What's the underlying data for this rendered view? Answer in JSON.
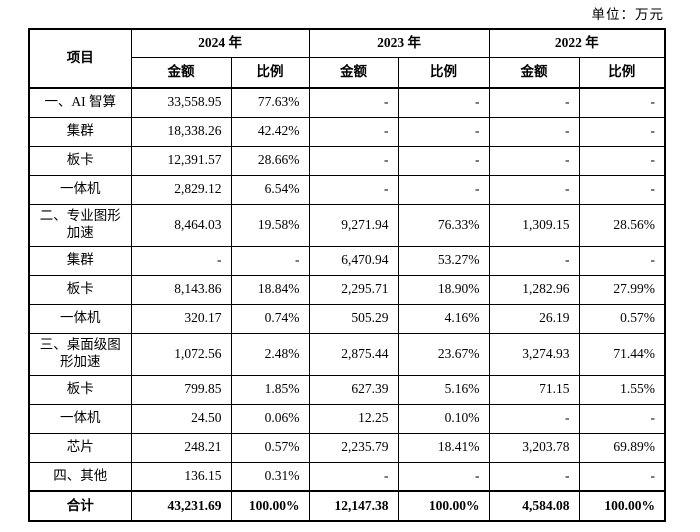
{
  "unit_label": "单位：万元",
  "table": {
    "header": {
      "item": "项目",
      "years": [
        "2024 年",
        "2023 年",
        "2022 年"
      ],
      "amount": "金额",
      "ratio": "比例"
    },
    "rows": [
      {
        "label": "一、AI 智算",
        "cells": [
          "33,558.95",
          "77.63%",
          "-",
          "-",
          "-",
          "-"
        ]
      },
      {
        "label": "集群",
        "cells": [
          "18,338.26",
          "42.42%",
          "-",
          "-",
          "-",
          "-"
        ]
      },
      {
        "label": "板卡",
        "cells": [
          "12,391.57",
          "28.66%",
          "-",
          "-",
          "-",
          "-"
        ]
      },
      {
        "label": "一体机",
        "cells": [
          "2,829.12",
          "6.54%",
          "-",
          "-",
          "-",
          "-"
        ]
      },
      {
        "label": "二、专业图形\n加速",
        "cells": [
          "8,464.03",
          "19.58%",
          "9,271.94",
          "76.33%",
          "1,309.15",
          "28.56%"
        ]
      },
      {
        "label": "集群",
        "cells": [
          "-",
          "-",
          "6,470.94",
          "53.27%",
          "-",
          "-"
        ]
      },
      {
        "label": "板卡",
        "cells": [
          "8,143.86",
          "18.84%",
          "2,295.71",
          "18.90%",
          "1,282.96",
          "27.99%"
        ]
      },
      {
        "label": "一体机",
        "cells": [
          "320.17",
          "0.74%",
          "505.29",
          "4.16%",
          "26.19",
          "0.57%"
        ]
      },
      {
        "label": "三、桌面级图\n形加速",
        "cells": [
          "1,072.56",
          "2.48%",
          "2,875.44",
          "23.67%",
          "3,274.93",
          "71.44%"
        ]
      },
      {
        "label": "板卡",
        "cells": [
          "799.85",
          "1.85%",
          "627.39",
          "5.16%",
          "71.15",
          "1.55%"
        ]
      },
      {
        "label": "一体机",
        "cells": [
          "24.50",
          "0.06%",
          "12.25",
          "0.10%",
          "-",
          "-"
        ]
      },
      {
        "label": "芯片",
        "cells": [
          "248.21",
          "0.57%",
          "2,235.79",
          "18.41%",
          "3,203.78",
          "69.89%"
        ]
      },
      {
        "label": "四、其他",
        "cells": [
          "136.15",
          "0.31%",
          "-",
          "-",
          "-",
          "-"
        ]
      },
      {
        "label": "合计",
        "cells": [
          "43,231.69",
          "100.00%",
          "12,147.38",
          "100.00%",
          "4,584.08",
          "100.00%"
        ]
      }
    ]
  }
}
